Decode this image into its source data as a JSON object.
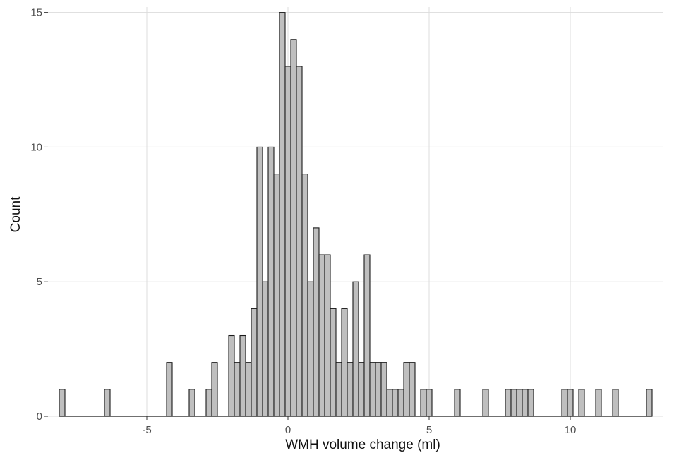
{
  "chart_data": {
    "type": "bar",
    "subtype": "histogram",
    "title": "",
    "xlabel": "WMH volume change (ml)",
    "ylabel": "Count",
    "xlim": [
      -8.5,
      13.3
    ],
    "ylim": [
      0,
      15.2
    ],
    "x_ticks": [
      -5,
      0,
      5,
      10
    ],
    "x_tick_labels": [
      "-5",
      "0",
      "5",
      "10"
    ],
    "y_ticks": [
      0,
      5,
      10,
      15
    ],
    "y_tick_labels": [
      "0",
      "5",
      "10",
      "15"
    ],
    "bin_width": 0.2,
    "grid": true,
    "legend": "none",
    "colors": {
      "bar_fill": "#bfbfbf",
      "bar_edge": "#1a1a1a",
      "grid": "#dcdcdc"
    },
    "bins": [
      {
        "x": -8.0,
        "count": 1
      },
      {
        "x": -6.4,
        "count": 1
      },
      {
        "x": -4.2,
        "count": 2
      },
      {
        "x": -3.4,
        "count": 1
      },
      {
        "x": -2.8,
        "count": 1
      },
      {
        "x": -2.6,
        "count": 2
      },
      {
        "x": -2.0,
        "count": 3
      },
      {
        "x": -1.8,
        "count": 2
      },
      {
        "x": -1.6,
        "count": 3
      },
      {
        "x": -1.4,
        "count": 2
      },
      {
        "x": -1.2,
        "count": 4
      },
      {
        "x": -1.0,
        "count": 10
      },
      {
        "x": -0.8,
        "count": 5
      },
      {
        "x": -0.6,
        "count": 10
      },
      {
        "x": -0.4,
        "count": 9
      },
      {
        "x": -0.2,
        "count": 15
      },
      {
        "x": 0.0,
        "count": 13
      },
      {
        "x": 0.2,
        "count": 14
      },
      {
        "x": 0.4,
        "count": 13
      },
      {
        "x": 0.6,
        "count": 9
      },
      {
        "x": 0.8,
        "count": 5
      },
      {
        "x": 1.0,
        "count": 7
      },
      {
        "x": 1.2,
        "count": 6
      },
      {
        "x": 1.4,
        "count": 6
      },
      {
        "x": 1.6,
        "count": 4
      },
      {
        "x": 1.8,
        "count": 2
      },
      {
        "x": 2.0,
        "count": 4
      },
      {
        "x": 2.2,
        "count": 2
      },
      {
        "x": 2.4,
        "count": 5
      },
      {
        "x": 2.6,
        "count": 2
      },
      {
        "x": 2.8,
        "count": 6
      },
      {
        "x": 3.0,
        "count": 2
      },
      {
        "x": 3.2,
        "count": 2
      },
      {
        "x": 3.4,
        "count": 2
      },
      {
        "x": 3.6,
        "count": 1
      },
      {
        "x": 3.8,
        "count": 1
      },
      {
        "x": 4.0,
        "count": 1
      },
      {
        "x": 4.2,
        "count": 2
      },
      {
        "x": 4.4,
        "count": 2
      },
      {
        "x": 4.8,
        "count": 1
      },
      {
        "x": 5.0,
        "count": 1
      },
      {
        "x": 6.0,
        "count": 1
      },
      {
        "x": 7.0,
        "count": 1
      },
      {
        "x": 7.8,
        "count": 1
      },
      {
        "x": 8.0,
        "count": 1
      },
      {
        "x": 8.2,
        "count": 1
      },
      {
        "x": 8.4,
        "count": 1
      },
      {
        "x": 8.6,
        "count": 1
      },
      {
        "x": 9.8,
        "count": 1
      },
      {
        "x": 10.0,
        "count": 1
      },
      {
        "x": 10.4,
        "count": 1
      },
      {
        "x": 11.0,
        "count": 1
      },
      {
        "x": 11.6,
        "count": 1
      },
      {
        "x": 12.8,
        "count": 1
      }
    ]
  }
}
